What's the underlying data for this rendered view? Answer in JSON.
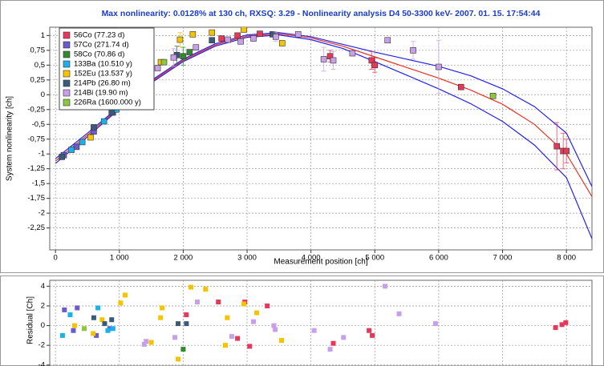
{
  "chart_data": [
    {
      "type": "scatter",
      "title": "Max nonlinearity: 0.0128% at 130 ch, RXSQ: 3.29 - Nonlinearity analysis D4 50-3300 keV- 2007. 01. 15. 17:54:44",
      "x_label": "Measurement position [ch]",
      "y_label": "System nonlinearity [ch]",
      "xlim": [
        -90,
        8400
      ],
      "ylim": [
        -2.62,
        1.14
      ],
      "xticks": [
        0,
        {
          "value": 1000,
          "label": "1 000"
        },
        {
          "value": 2000,
          "label": "2 000"
        },
        {
          "value": 3000,
          "label": "3 000"
        },
        {
          "value": 4000,
          "label": "4 000"
        },
        {
          "value": 5000,
          "label": "5 000"
        },
        {
          "value": 6000,
          "label": "6 000"
        },
        {
          "value": 7000,
          "label": "7 000"
        },
        {
          "value": 8000,
          "label": "8 000"
        }
      ],
      "yticks": [
        1,
        {
          "value": 0.75,
          "label": "0,75"
        },
        {
          "value": 0.5,
          "label": "0,5"
        },
        {
          "value": 0.25,
          "label": "0,25"
        },
        0,
        {
          "value": -0.25,
          "label": "-0,25"
        },
        {
          "value": -0.5,
          "label": "-0,5"
        },
        {
          "value": -0.75,
          "label": "-0,75"
        },
        -1,
        {
          "value": -1.25,
          "label": "-1,25"
        },
        {
          "value": -1.5,
          "label": "-1,5"
        },
        {
          "value": -1.75,
          "label": "-1,75"
        },
        -2,
        {
          "value": -2.25,
          "label": "-2,25"
        }
      ],
      "grid": true,
      "legend": "upper left",
      "series": [
        {
          "name": "56Co (77.23 d)",
          "color": "#e8385a",
          "x": [
            2600,
            2850,
            3200,
            4300,
            4950,
            5000,
            6350,
            7850,
            7950,
            8000
          ],
          "values": [
            0.95,
            1.0,
            1.03,
            0.65,
            0.58,
            0.5,
            0.13,
            -0.87,
            -0.95,
            -0.95
          ],
          "errors": [
            null,
            null,
            null,
            0.1,
            0.15,
            0.12,
            null,
            0.4,
            0.3,
            0.2
          ]
        },
        {
          "name": "57Co (271.74 d)",
          "color": "#6a5acd",
          "x": [
            130,
            330,
            600,
            900,
            1050
          ],
          "values": [
            -1.02,
            -0.88,
            -0.62,
            -0.3,
            -0.2
          ],
          "errors": [
            null,
            null,
            null,
            null,
            null
          ]
        },
        {
          "name": "58Co (70.86 d)",
          "color": "#2e8b2e",
          "x": [
            2000,
            2100
          ],
          "values": [
            0.65,
            0.72
          ],
          "errors": [
            0.15,
            null
          ]
        },
        {
          "name": "133Ba (10.510 y)",
          "color": "#1ab0e8",
          "x": [
            250,
            420,
            760,
            950
          ],
          "values": [
            -0.93,
            -0.8,
            -0.45,
            -0.25
          ],
          "errors": [
            null,
            null,
            null,
            null
          ]
        },
        {
          "name": "152Eu (13.537 y)",
          "color": "#f5c400",
          "x": [
            550,
            1650,
            1950,
            2150,
            2450,
            2950,
            3550
          ],
          "values": [
            -0.72,
            0.55,
            0.93,
            1.02,
            1.05,
            1.1,
            0.87
          ],
          "errors": [
            null,
            null,
            0.12,
            null,
            null,
            null,
            null
          ]
        },
        {
          "name": "214Pb (26.80 m)",
          "color": "#3a5a7a",
          "x": [
            100,
            600,
            880,
            1900,
            2450,
            3400
          ],
          "values": [
            -1.05,
            -0.55,
            -0.3,
            0.67,
            0.92,
            1.02
          ],
          "errors": [
            null,
            null,
            null,
            0.15,
            null,
            null
          ]
        },
        {
          "name": "214Bi (19.90 m)",
          "color": "#c8a0e8",
          "x": [
            1600,
            1850,
            2200,
            2700,
            2900,
            3100,
            3450,
            3800,
            4200,
            4350,
            4650,
            5200,
            5600,
            6000
          ],
          "values": [
            0.45,
            0.63,
            0.8,
            0.93,
            0.9,
            0.95,
            0.98,
            1.02,
            0.6,
            0.58,
            0.7,
            0.92,
            0.75,
            0.47
          ],
          "errors": [
            null,
            0.15,
            null,
            null,
            null,
            null,
            0.08,
            null,
            0.2,
            0.15,
            null,
            null,
            0.15,
            0.45
          ]
        },
        {
          "name": "226Ra (1600.000 y)",
          "color": "#8dc63f",
          "x": [
            1500,
            1700,
            6850
          ],
          "values": [
            0.45,
            0.55,
            -0.02
          ],
          "errors": [
            null,
            null,
            null
          ]
        }
      ],
      "lines": [
        {
          "color": "#2222ee",
          "x": [
            0,
            500,
            1000,
            1500,
            2000,
            2500,
            3000,
            3500,
            4000,
            4500,
            5000,
            5500,
            6000,
            6500,
            7000,
            7500,
            8000,
            8400
          ],
          "values": [
            -1.08,
            -0.65,
            -0.2,
            0.24,
            0.6,
            0.86,
            1.01,
            1.05,
            0.98,
            0.85,
            0.72,
            0.6,
            0.48,
            0.32,
            0.1,
            -0.2,
            -0.65,
            -1.55
          ]
        },
        {
          "color": "#e83020",
          "x": [
            0,
            500,
            1000,
            1500,
            2000,
            2500,
            3000,
            3500,
            4000,
            4500,
            5000,
            5500,
            6000,
            6500,
            7000,
            7500,
            8000,
            8400
          ],
          "values": [
            -1.12,
            -0.68,
            -0.22,
            0.22,
            0.58,
            0.84,
            0.99,
            1.03,
            0.96,
            0.82,
            0.64,
            0.46,
            0.28,
            0.08,
            -0.16,
            -0.5,
            -1.0,
            -1.72
          ]
        },
        {
          "color": "#2222ee",
          "x": [
            0,
            500,
            1000,
            1500,
            2000,
            2500,
            3000,
            3500,
            4000,
            4500,
            5000,
            5500,
            6000,
            6500,
            7000,
            7500,
            8000,
            8400
          ],
          "values": [
            -1.16,
            -0.71,
            -0.24,
            0.2,
            0.56,
            0.82,
            0.97,
            1.01,
            0.93,
            0.78,
            0.56,
            0.33,
            0.1,
            -0.15,
            -0.45,
            -0.85,
            -1.4,
            -2.43
          ]
        }
      ]
    },
    {
      "type": "scatter",
      "y_label": "Residual [Ch]",
      "xlim": [
        -90,
        8400
      ],
      "ylim": [
        -4.1,
        4.6
      ],
      "yticks": [
        4,
        2,
        0,
        -2,
        -4
      ],
      "grid": true,
      "series": [
        {
          "color": "#e8385a",
          "x": [
            2048,
            2550,
            2850,
            2965,
            3040,
            3316,
            4350,
            4910,
            4960,
            7830,
            7930,
            7990
          ],
          "values": [
            1.1,
            2.4,
            -1.3,
            2.4,
            -2.1,
            2.0,
            -1.8,
            -0.5,
            -1.0,
            -0.2,
            0.1,
            0.3
          ]
        },
        {
          "color": "#6a5acd",
          "x": [
            140,
            280,
            340,
            640,
            850
          ],
          "values": [
            1.6,
            -0.5,
            1.8,
            -1.0,
            -0.3
          ]
        },
        {
          "color": "#2e8b2e",
          "x": [
            2000
          ],
          "values": [
            -2.4
          ]
        },
        {
          "color": "#1ab0e8",
          "x": [
            110,
            230,
            665,
            820,
            900
          ],
          "values": [
            -1.0,
            1.1,
            1.8,
            -0.5,
            -0.3
          ]
        },
        {
          "color": "#f5c400",
          "x": [
            300,
            590,
            730,
            1020,
            1090,
            1500,
            1645,
            1670,
            1920,
            2120,
            2350,
            2660,
            2690,
            2950,
            3150,
            3540
          ],
          "values": [
            0,
            -0.8,
            0.6,
            2.3,
            3.1,
            -1.7,
            0.8,
            1.8,
            -3.4,
            3.9,
            3.7,
            -2.0,
            0.8,
            2.2,
            1.3,
            -1.5
          ]
        },
        {
          "color": "#3a5a7a",
          "x": [
            600,
            770,
            880,
            1920,
            2050
          ],
          "values": [
            0.8,
            0.2,
            0.6,
            0.2,
            0.2
          ]
        },
        {
          "color": "#c8a0e8",
          "x": [
            1390,
            1420,
            1870,
            2220,
            2760,
            3100,
            3420,
            3440,
            4050,
            4300,
            4510,
            5160,
            5380,
            5950
          ],
          "values": [
            -1.9,
            -1.6,
            -1.2,
            2.4,
            -1.1,
            0.4,
            0,
            -0.4,
            -0.5,
            -2.4,
            -1.2,
            4.0,
            1.2,
            0.2
          ]
        },
        {
          "color": "#8dc63f",
          "x": [
            450
          ],
          "values": [
            -0.3
          ]
        }
      ]
    }
  ]
}
